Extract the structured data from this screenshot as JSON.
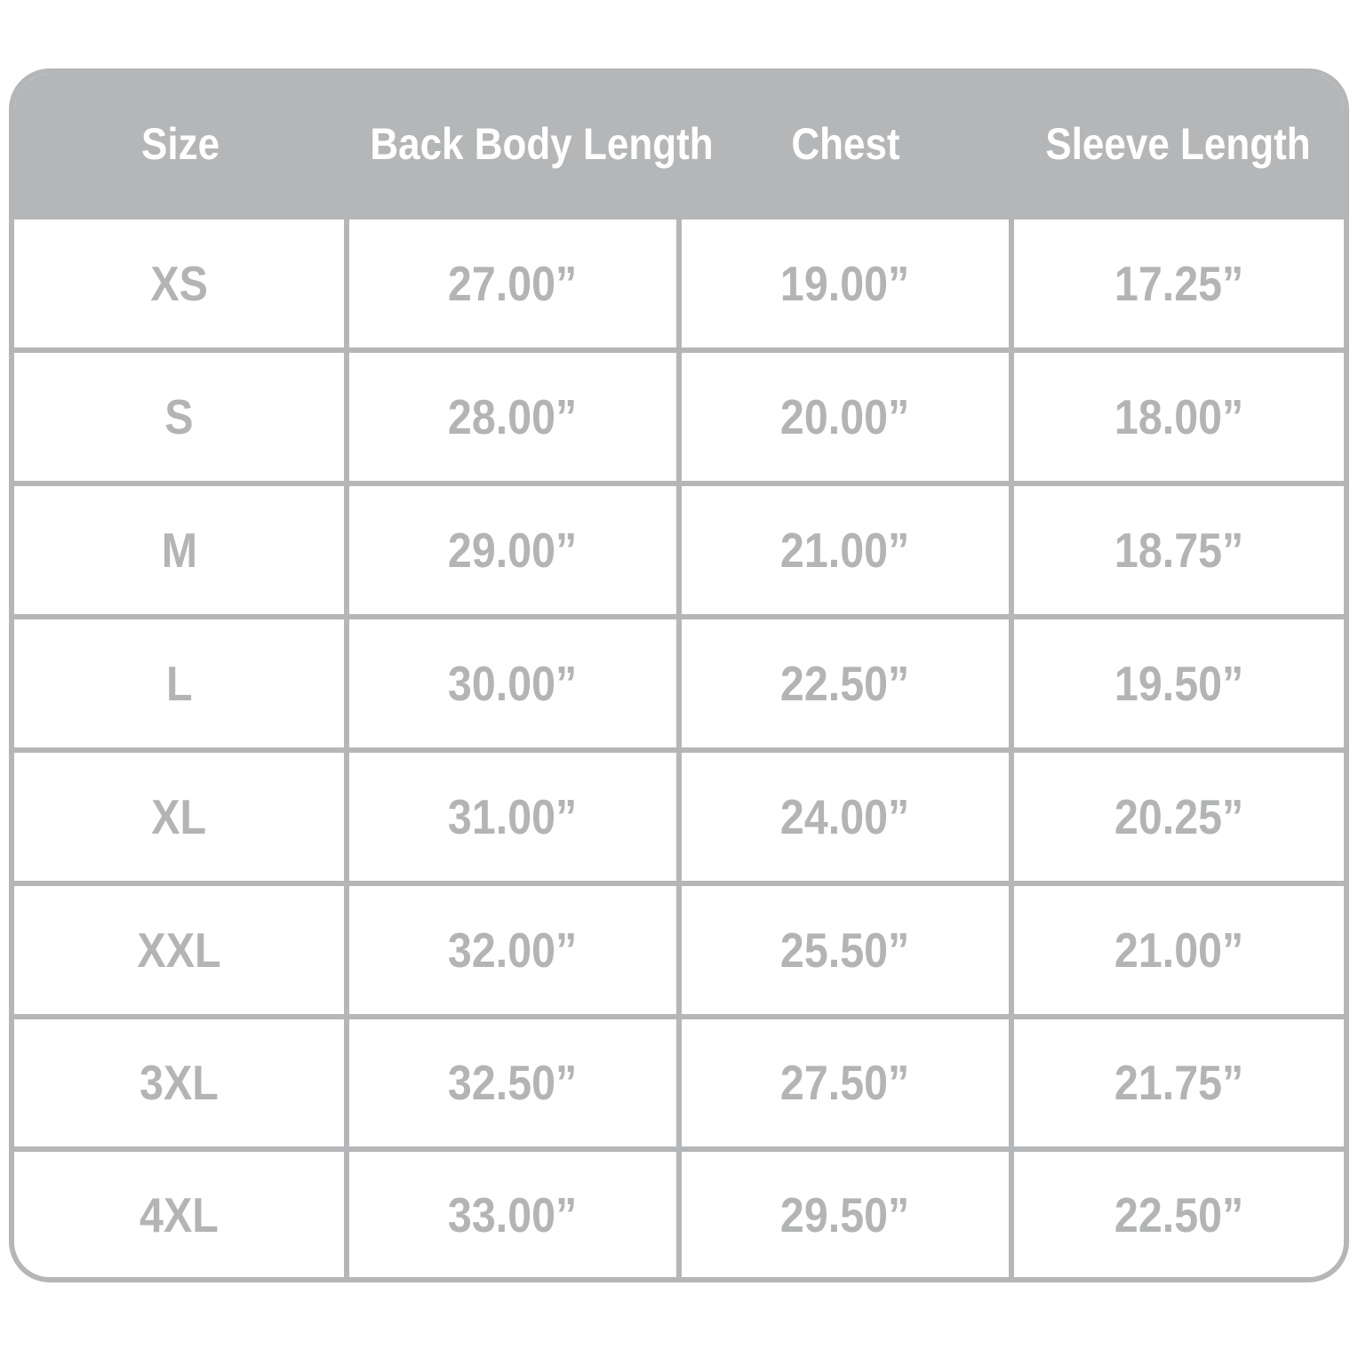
{
  "chart_data": {
    "type": "table",
    "columns": [
      "Size",
      "Back Body Length",
      "Chest",
      "Sleeve Length"
    ],
    "rows": [
      [
        "XS",
        "27.00”",
        "19.00”",
        "17.25”"
      ],
      [
        "S",
        "28.00”",
        "20.00”",
        "18.00”"
      ],
      [
        "M",
        "29.00”",
        "21.00”",
        "18.75”"
      ],
      [
        "L",
        "30.00”",
        "22.50”",
        "19.50”"
      ],
      [
        "XL",
        "31.00”",
        "24.00”",
        "20.25”"
      ],
      [
        "XXL",
        "32.00”",
        "25.50”",
        "21.00”"
      ],
      [
        "3XL",
        "32.50”",
        "27.50”",
        "21.75”"
      ],
      [
        "4XL",
        "33.00”",
        "29.50”",
        "22.50”"
      ]
    ]
  },
  "colors": {
    "header_bg": "#b4b6b8",
    "header_text": "#ffffff",
    "cell_text": "#b2b4b6",
    "border": "#b4b6b8",
    "row_bg": "#ffffff",
    "page_bg": "#ffffff"
  }
}
